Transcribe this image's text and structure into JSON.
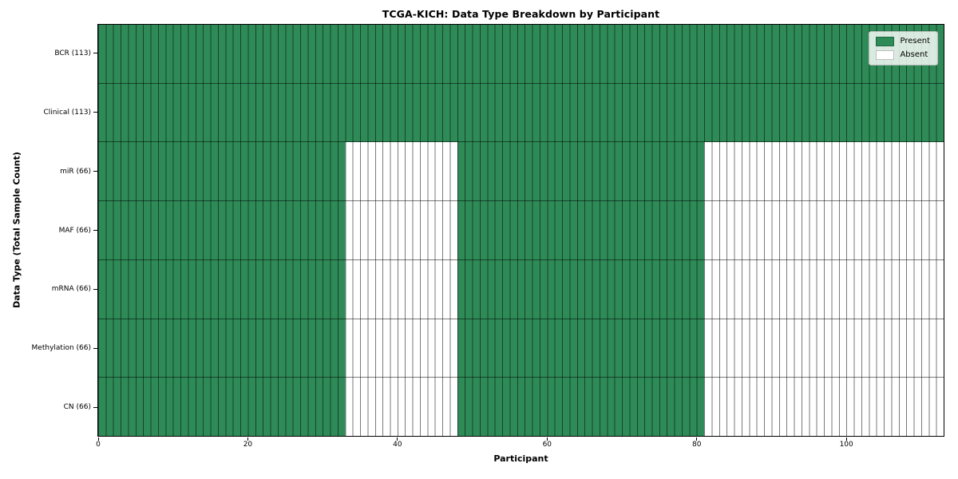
{
  "title": "TCGA-KICH: Data Type Breakdown by Participant",
  "axes": {
    "xlabel": "Participant",
    "ylabel": "Data Type (Total Sample Count)"
  },
  "legend": {
    "items": [
      {
        "label": "Present",
        "color": "#2e8b57"
      },
      {
        "label": "Absent",
        "color": "#ffffff"
      }
    ]
  },
  "chart_data": {
    "type": "heatmap",
    "title": "TCGA-KICH: Data Type Breakdown by Participant",
    "xlabel": "Participant",
    "ylabel": "Data Type (Total Sample Count)",
    "x_range": [
      0,
      113
    ],
    "x_ticks": [
      0,
      20,
      40,
      60,
      80,
      100
    ],
    "n_participants": 113,
    "legend_position": "upper right",
    "rows": [
      {
        "label": "BCR (113)",
        "data_type": "BCR",
        "total_samples": 113,
        "present_ranges": [
          [
            0,
            113
          ]
        ]
      },
      {
        "label": "Clinical (113)",
        "data_type": "Clinical",
        "total_samples": 113,
        "present_ranges": [
          [
            0,
            113
          ]
        ]
      },
      {
        "label": "miR (66)",
        "data_type": "miR",
        "total_samples": 66,
        "present_ranges": [
          [
            0,
            33
          ],
          [
            48,
            81
          ]
        ]
      },
      {
        "label": "MAF (66)",
        "data_type": "MAF",
        "total_samples": 66,
        "present_ranges": [
          [
            0,
            33
          ],
          [
            48,
            81
          ]
        ]
      },
      {
        "label": "mRNA (66)",
        "data_type": "mRNA",
        "total_samples": 66,
        "present_ranges": [
          [
            0,
            33
          ],
          [
            48,
            81
          ]
        ]
      },
      {
        "label": "Methylation (66)",
        "data_type": "Methylation",
        "total_samples": 66,
        "present_ranges": [
          [
            0,
            33
          ],
          [
            48,
            81
          ]
        ]
      },
      {
        "label": "CN (66)",
        "data_type": "CN",
        "total_samples": 66,
        "present_ranges": [
          [
            0,
            33
          ],
          [
            48,
            81
          ]
        ]
      }
    ],
    "colors": {
      "present": "#2e8b57",
      "absent": "#ffffff",
      "cell_edge": "rgba(0,0,0,0.52)",
      "frame": "#000000"
    }
  }
}
